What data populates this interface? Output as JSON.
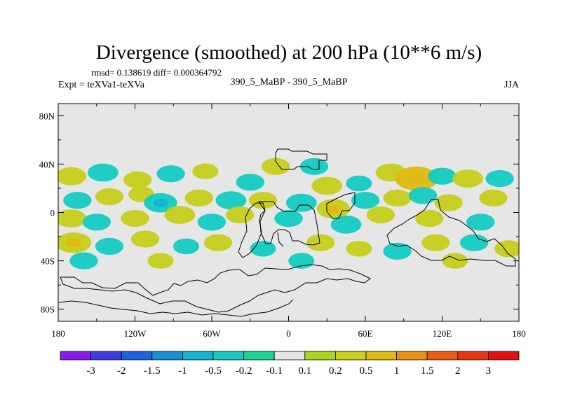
{
  "chart_data": {
    "type": "heatmap",
    "title": "Divergence (smoothed) at 200 hPa (10**6 m/s)",
    "stats": "rmsd= 0.138619 diff= 0.000364792",
    "left_label": "Expt = teXVa1-teXVa",
    "center_label": "390_5_MaBP - 390_5_MaBP",
    "season": "JJA",
    "x_ticks": [
      {
        "label": "180",
        "lon": -180
      },
      {
        "label": "120W",
        "lon": -120
      },
      {
        "label": "60W",
        "lon": -60
      },
      {
        "label": "0",
        "lon": 0
      },
      {
        "label": "60E",
        "lon": 60
      },
      {
        "label": "120E",
        "lon": 120
      },
      {
        "label": "180",
        "lon": 180
      }
    ],
    "y_ticks": [
      {
        "label": "80N",
        "lat": 80
      },
      {
        "label": "40N",
        "lat": 40
      },
      {
        "label": "0",
        "lat": 0
      },
      {
        "label": "40S",
        "lat": -40
      },
      {
        "label": "80S",
        "lat": -80
      }
    ],
    "xlim": [
      -180,
      180
    ],
    "ylim": [
      -90,
      90
    ],
    "colorbar": {
      "labels": [
        "-3",
        "-2",
        "-1.5",
        "-1",
        "-0.5",
        "-0.2",
        "-0.1",
        "0.1",
        "0.2",
        "0.5",
        "1",
        "1.5",
        "2",
        "3"
      ],
      "colors": [
        "#8c1aef",
        "#3d3de6",
        "#1e63e0",
        "#1591d6",
        "#12b4cf",
        "#13cbc1",
        "#19d297",
        "#e6e6e6",
        "#a8d61d",
        "#c6cf1b",
        "#e0b912",
        "#ec8e13",
        "#ee5c12",
        "#ec3510",
        "#e4100e"
      ]
    },
    "anomalies": [
      {
        "lon": -170,
        "lat": 30,
        "v": 0.35
      },
      {
        "lon": -145,
        "lat": 33,
        "v": -0.35
      },
      {
        "lon": -118,
        "lat": 27,
        "v": 0.3
      },
      {
        "lon": -92,
        "lat": 32,
        "v": -0.3
      },
      {
        "lon": -65,
        "lat": 34,
        "v": 0.25
      },
      {
        "lon": -30,
        "lat": 25,
        "v": -0.3
      },
      {
        "lon": -10,
        "lat": 38,
        "v": 0.3
      },
      {
        "lon": 20,
        "lat": 38,
        "v": -0.3
      },
      {
        "lon": 30,
        "lat": 22,
        "v": 0.35
      },
      {
        "lon": 55,
        "lat": 24,
        "v": -0.25
      },
      {
        "lon": 80,
        "lat": 33,
        "v": 0.35
      },
      {
        "lon": 100,
        "lat": 28,
        "v": 0.6
      },
      {
        "lon": 120,
        "lat": 30,
        "v": -0.3
      },
      {
        "lon": 140,
        "lat": 28,
        "v": 0.35
      },
      {
        "lon": 165,
        "lat": 28,
        "v": -0.3
      },
      {
        "lon": -165,
        "lat": 10,
        "v": -0.3
      },
      {
        "lon": -140,
        "lat": 13,
        "v": 0.3
      },
      {
        "lon": -115,
        "lat": 15,
        "v": 0.25
      },
      {
        "lon": -100,
        "lat": 8,
        "v": -0.4
      },
      {
        "lon": -70,
        "lat": 12,
        "v": 0.3
      },
      {
        "lon": -45,
        "lat": 10,
        "v": -0.35
      },
      {
        "lon": -20,
        "lat": 10,
        "v": 0.3
      },
      {
        "lon": 10,
        "lat": 8,
        "v": -0.35
      },
      {
        "lon": 35,
        "lat": 3,
        "v": 0.4
      },
      {
        "lon": 60,
        "lat": 10,
        "v": -0.3
      },
      {
        "lon": 85,
        "lat": 12,
        "v": 0.3
      },
      {
        "lon": 105,
        "lat": 14,
        "v": -0.3
      },
      {
        "lon": 125,
        "lat": 8,
        "v": 0.3
      },
      {
        "lon": 160,
        "lat": 12,
        "v": 0.3
      },
      {
        "lon": -170,
        "lat": -5,
        "v": 0.35
      },
      {
        "lon": -150,
        "lat": -8,
        "v": -0.3
      },
      {
        "lon": -120,
        "lat": -5,
        "v": 0.3
      },
      {
        "lon": -85,
        "lat": -2,
        "v": 0.35
      },
      {
        "lon": -60,
        "lat": -8,
        "v": -0.3
      },
      {
        "lon": -38,
        "lat": -2,
        "v": 0.3
      },
      {
        "lon": 0,
        "lat": -5,
        "v": -0.3
      },
      {
        "lon": 45,
        "lat": -10,
        "v": -0.35
      },
      {
        "lon": 72,
        "lat": -2,
        "v": 0.3
      },
      {
        "lon": 110,
        "lat": -5,
        "v": 0.3
      },
      {
        "lon": 150,
        "lat": -8,
        "v": -0.3
      },
      {
        "lon": -168,
        "lat": -25,
        "v": 0.45
      },
      {
        "lon": -140,
        "lat": -28,
        "v": -0.3
      },
      {
        "lon": -112,
        "lat": -22,
        "v": 0.3
      },
      {
        "lon": -80,
        "lat": -28,
        "v": -0.25
      },
      {
        "lon": -55,
        "lat": -25,
        "v": 0.3
      },
      {
        "lon": -20,
        "lat": -30,
        "v": -0.25
      },
      {
        "lon": 25,
        "lat": -25,
        "v": 0.3
      },
      {
        "lon": 55,
        "lat": -30,
        "v": 0.25
      },
      {
        "lon": 85,
        "lat": -32,
        "v": -0.3
      },
      {
        "lon": 115,
        "lat": -25,
        "v": 0.3
      },
      {
        "lon": 145,
        "lat": -25,
        "v": -0.3
      },
      {
        "lon": 172,
        "lat": -30,
        "v": 0.3
      },
      {
        "lon": -160,
        "lat": -40,
        "v": -0.3
      },
      {
        "lon": -100,
        "lat": -40,
        "v": 0.25
      },
      {
        "lon": 10,
        "lat": -40,
        "v": -0.25
      },
      {
        "lon": 130,
        "lat": -40,
        "v": 0.25
      }
    ]
  }
}
